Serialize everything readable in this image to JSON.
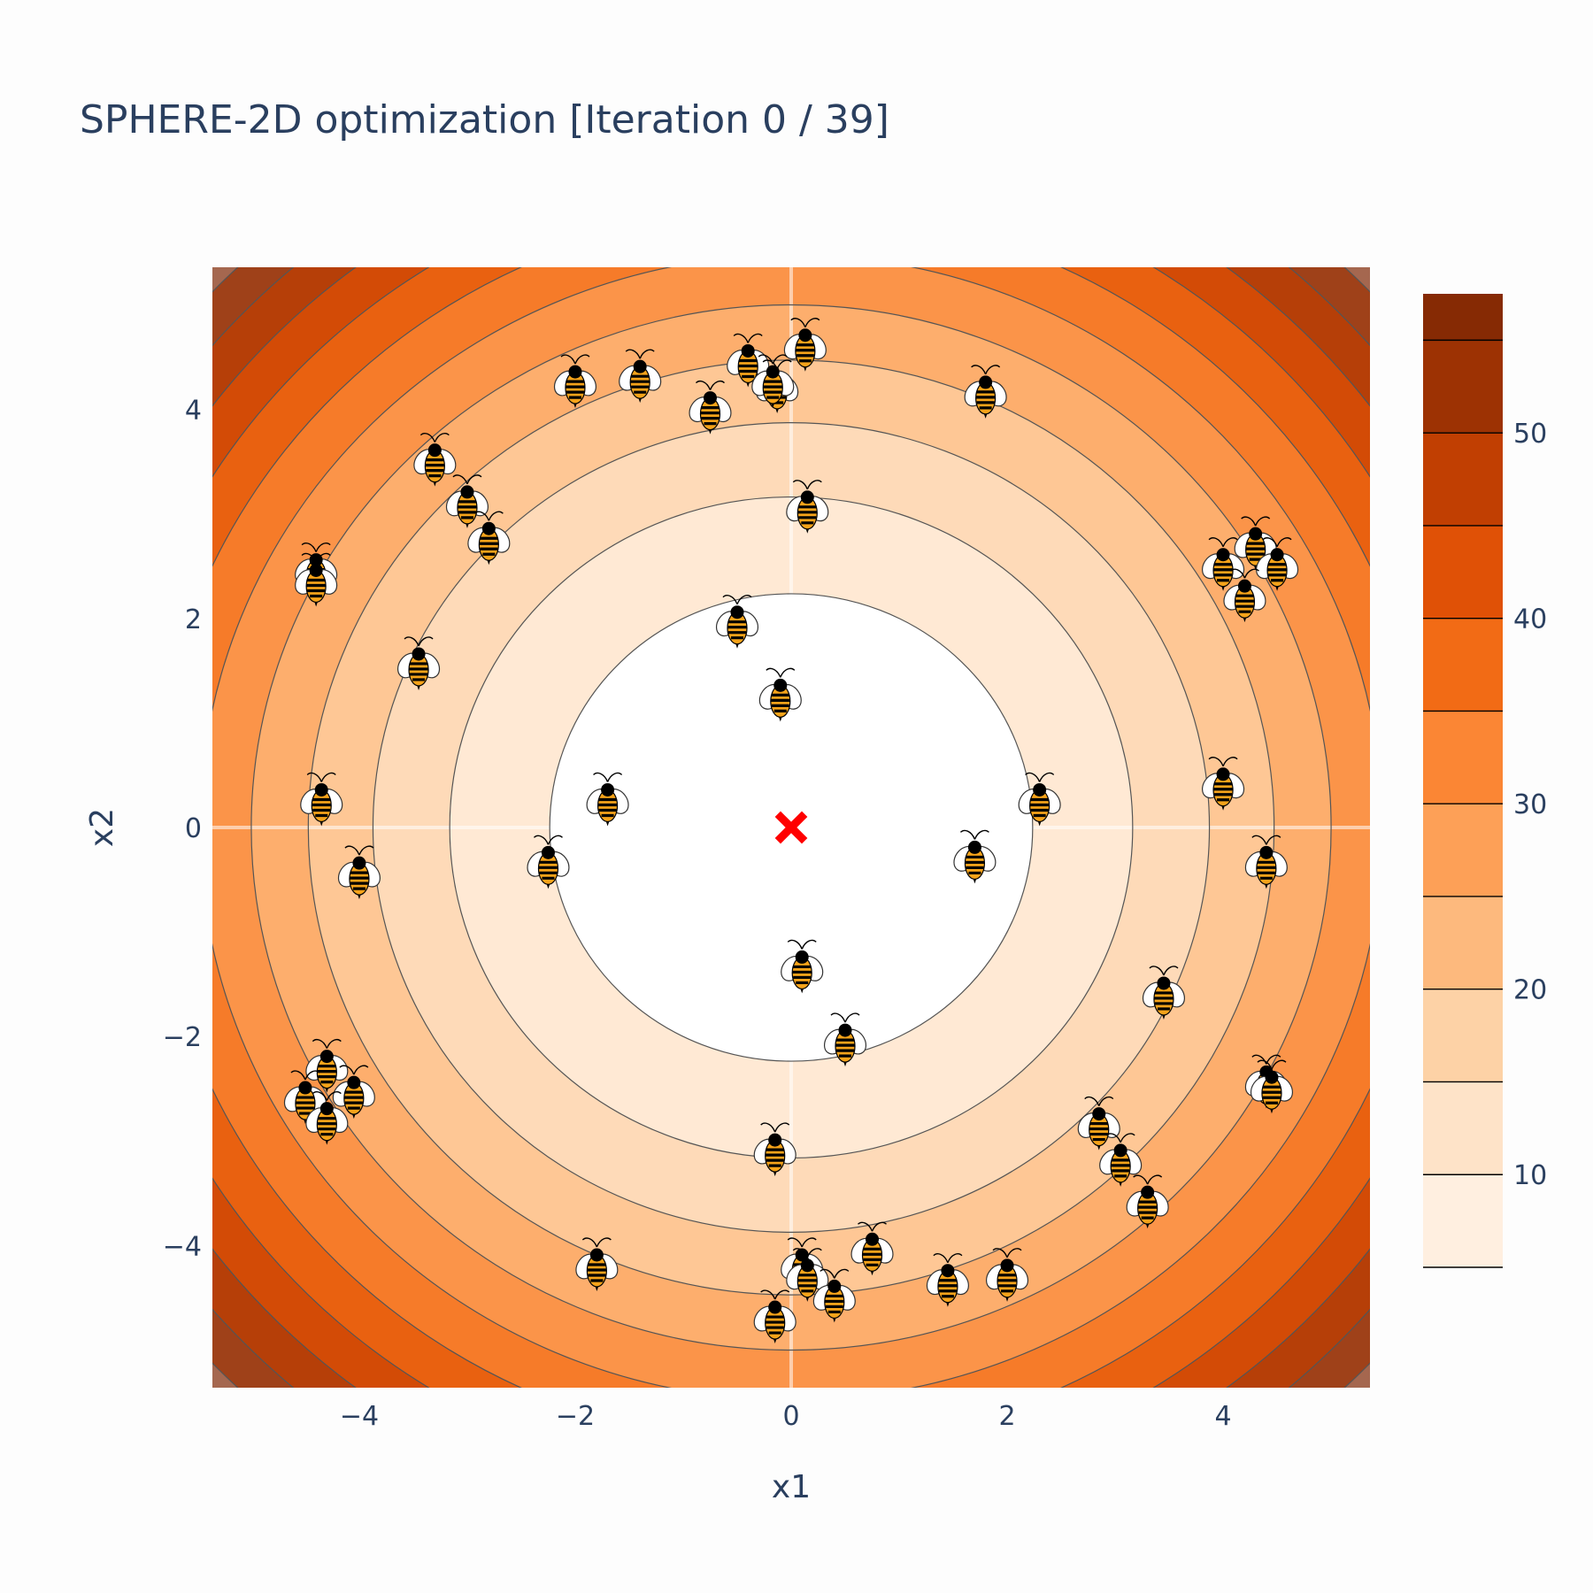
{
  "chart_data": {
    "type": "contour",
    "title": "SPHERE-2D optimization [Iteration 0 / 39]",
    "xlabel": "x1",
    "ylabel": "x2",
    "xlim": [
      -5.36,
      5.36
    ],
    "ylim": [
      -5.36,
      5.36
    ],
    "x_ticks": [
      -4,
      -2,
      0,
      2,
      4
    ],
    "y_ticks": [
      -4,
      -2,
      0,
      2,
      4
    ],
    "function": "x1^2 + x2^2",
    "contour_levels": [
      5,
      10,
      15,
      20,
      25,
      30,
      35,
      40,
      45,
      50,
      55
    ],
    "colorbar": {
      "range": [
        5,
        57.5
      ],
      "ticks": [
        10,
        20,
        30,
        40,
        50
      ],
      "colorscale": [
        "#fff5eb",
        "#fee6ce",
        "#fdd0a2",
        "#fdae6b",
        "#fd8d3c",
        "#f16913",
        "#d94801",
        "#a63603",
        "#7f2704"
      ]
    },
    "optimum": {
      "x": 0,
      "y": 0,
      "marker": "x",
      "color": "#ff0000"
    },
    "particles_marker": "bee",
    "particles": [
      {
        "x": 0.13,
        "y": 4.6
      },
      {
        "x": -0.4,
        "y": 4.45
      },
      {
        "x": -0.13,
        "y": 4.2
      },
      {
        "x": -0.17,
        "y": 4.25
      },
      {
        "x": -1.4,
        "y": 4.3
      },
      {
        "x": -2.0,
        "y": 4.25
      },
      {
        "x": -0.75,
        "y": 4.0
      },
      {
        "x": 1.8,
        "y": 4.15
      },
      {
        "x": -3.3,
        "y": 3.5
      },
      {
        "x": -3.0,
        "y": 3.1
      },
      {
        "x": -2.8,
        "y": 2.75
      },
      {
        "x": 0.15,
        "y": 3.05
      },
      {
        "x": -4.4,
        "y": 2.45
      },
      {
        "x": -4.4,
        "y": 2.35
      },
      {
        "x": -3.45,
        "y": 1.55
      },
      {
        "x": -0.5,
        "y": 1.95
      },
      {
        "x": -0.1,
        "y": 1.25
      },
      {
        "x": -4.35,
        "y": 0.25
      },
      {
        "x": -1.7,
        "y": 0.25
      },
      {
        "x": 2.3,
        "y": 0.25
      },
      {
        "x": 4.0,
        "y": 0.4
      },
      {
        "x": 1.7,
        "y": -0.3
      },
      {
        "x": -2.25,
        "y": -0.35
      },
      {
        "x": -4.0,
        "y": -0.45
      },
      {
        "x": 4.4,
        "y": -0.35
      },
      {
        "x": 4.0,
        "y": 2.5
      },
      {
        "x": 4.3,
        "y": 2.7
      },
      {
        "x": 4.5,
        "y": 2.5
      },
      {
        "x": 4.2,
        "y": 2.2
      },
      {
        "x": 0.1,
        "y": -1.35
      },
      {
        "x": 3.45,
        "y": -1.6
      },
      {
        "x": 0.5,
        "y": -2.05
      },
      {
        "x": -4.3,
        "y": -2.3
      },
      {
        "x": -4.05,
        "y": -2.55
      },
      {
        "x": -4.5,
        "y": -2.6
      },
      {
        "x": -4.3,
        "y": -2.8
      },
      {
        "x": 4.4,
        "y": -2.45
      },
      {
        "x": 4.45,
        "y": -2.5
      },
      {
        "x": 2.85,
        "y": -2.85
      },
      {
        "x": 3.05,
        "y": -3.2
      },
      {
        "x": 3.3,
        "y": -3.6
      },
      {
        "x": -0.15,
        "y": -3.1
      },
      {
        "x": -1.8,
        "y": -4.2
      },
      {
        "x": 0.1,
        "y": -4.2
      },
      {
        "x": 0.15,
        "y": -4.3
      },
      {
        "x": 0.75,
        "y": -4.05
      },
      {
        "x": 0.4,
        "y": -4.5
      },
      {
        "x": 1.45,
        "y": -4.35
      },
      {
        "x": 2.0,
        "y": -4.3
      },
      {
        "x": -0.15,
        "y": -4.7
      }
    ]
  }
}
